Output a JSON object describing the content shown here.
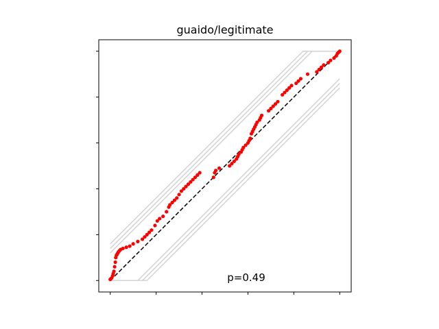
{
  "chart_data": {
    "type": "scatter",
    "title": "guaido/legitimate",
    "xlabel": "",
    "ylabel": "",
    "xlim": [
      -0.05,
      1.05
    ],
    "ylim": [
      -0.05,
      1.05
    ],
    "x_tick_values": [
      0,
      0.2,
      0.4,
      0.6,
      0.8,
      1.0
    ],
    "y_tick_values": [
      0,
      0.2,
      0.4,
      0.6,
      0.8,
      1.0
    ],
    "tick_labels_shown": false,
    "grid": false,
    "annotation": "p=0.49",
    "colors": {
      "points": "#ff0000",
      "reference_line": "#000000",
      "bands": "#d3d3d3"
    },
    "reference_line": {
      "from": [
        0,
        0
      ],
      "to": [
        1,
        1
      ],
      "style": "dashed"
    },
    "bands": [
      {
        "offset": 0.16
      },
      {
        "offset": 0.14
      },
      {
        "offset": 0.12
      },
      {
        "offset": -0.12
      },
      {
        "offset": -0.14
      },
      {
        "offset": -0.16
      }
    ],
    "points": {
      "x": [
        0.0,
        0.005,
        0.01,
        0.013,
        0.016,
        0.019,
        0.022,
        0.024,
        0.027,
        0.03,
        0.033,
        0.036,
        0.04,
        0.045,
        0.055,
        0.07,
        0.085,
        0.1,
        0.12,
        0.14,
        0.15,
        0.16,
        0.17,
        0.18,
        0.195,
        0.205,
        0.215,
        0.23,
        0.245,
        0.255,
        0.26,
        0.27,
        0.28,
        0.29,
        0.3,
        0.31,
        0.32,
        0.33,
        0.34,
        0.35,
        0.36,
        0.37,
        0.38,
        0.39,
        0.45,
        0.455,
        0.46,
        0.475,
        0.52,
        0.53,
        0.54,
        0.55,
        0.555,
        0.56,
        0.57,
        0.575,
        0.58,
        0.59,
        0.6,
        0.605,
        0.61,
        0.615,
        0.62,
        0.625,
        0.63,
        0.635,
        0.64,
        0.65,
        0.655,
        0.66,
        0.69,
        0.7,
        0.71,
        0.72,
        0.73,
        0.75,
        0.76,
        0.77,
        0.78,
        0.79,
        0.81,
        0.82,
        0.83,
        0.86,
        0.9,
        0.91,
        0.92,
        0.93,
        0.95,
        0.96,
        0.975,
        0.985,
        0.99,
        0.995,
        1.0
      ],
      "y": [
        0.005,
        0.01,
        0.02,
        0.03,
        0.04,
        0.06,
        0.08,
        0.1,
        0.11,
        0.115,
        0.12,
        0.125,
        0.13,
        0.135,
        0.14,
        0.145,
        0.15,
        0.16,
        0.17,
        0.18,
        0.19,
        0.2,
        0.21,
        0.22,
        0.24,
        0.26,
        0.27,
        0.28,
        0.3,
        0.32,
        0.33,
        0.34,
        0.35,
        0.36,
        0.375,
        0.39,
        0.4,
        0.41,
        0.42,
        0.43,
        0.44,
        0.45,
        0.46,
        0.47,
        0.45,
        0.47,
        0.48,
        0.49,
        0.5,
        0.51,
        0.52,
        0.53,
        0.54,
        0.55,
        0.56,
        0.57,
        0.58,
        0.59,
        0.6,
        0.61,
        0.62,
        0.64,
        0.65,
        0.66,
        0.67,
        0.68,
        0.69,
        0.7,
        0.71,
        0.72,
        0.74,
        0.75,
        0.76,
        0.77,
        0.78,
        0.81,
        0.82,
        0.83,
        0.84,
        0.85,
        0.86,
        0.87,
        0.88,
        0.9,
        0.91,
        0.92,
        0.93,
        0.94,
        0.95,
        0.96,
        0.97,
        0.98,
        0.99,
        0.995,
        1.0
      ]
    }
  }
}
